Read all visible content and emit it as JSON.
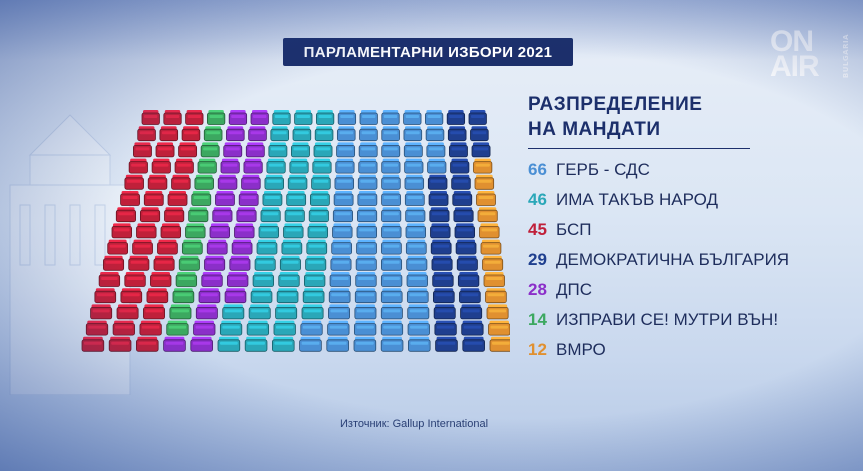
{
  "title": "ПАРЛАМЕНТАРНИ ИЗБОРИ 2021",
  "logo": {
    "line1": "ON",
    "line2": "AIR",
    "sub": "BULGARIA"
  },
  "legend_title_line1": "РАЗПРЕДЕЛЕНИЕ",
  "legend_title_line2": "НА МАНДАТИ",
  "source": "Източник: Gallup International",
  "chart_data": {
    "type": "parliament_seats",
    "title": "РАЗПРЕДЕЛЕНИЕ НА МАНДАТИ",
    "total_seats": 240,
    "series": [
      {
        "name": "ГЕРБ - СДС",
        "value": 66,
        "color": "#4a8fd4"
      },
      {
        "name": "ИМА ТАКЪВ НАРОД",
        "value": 46,
        "color": "#2aa7b8"
      },
      {
        "name": "БСП",
        "value": 45,
        "color": "#c0203a"
      },
      {
        "name": "ДЕМОКРАТИЧНА БЪЛГАРИЯ",
        "value": 29,
        "color": "#1f3f8f"
      },
      {
        "name": "ДПС",
        "value": 28,
        "color": "#8b2fc9"
      },
      {
        "name": "ИЗПРАВИ СЕ! МУТРИ ВЪН!",
        "value": 14,
        "color": "#3ca860"
      },
      {
        "name": "ВМРО",
        "value": 12,
        "color": "#e09030"
      }
    ],
    "seat_order": [
      "БСП",
      "ИЗПРАВИ СЕ! МУТРИ ВЪН!",
      "ДПС",
      "ИМА ТАКЪВ НАРОД",
      "ГЕРБ - СДС",
      "ДЕМОКРАТИЧНА БЪЛГАРИЯ",
      "ВМРО"
    ]
  }
}
